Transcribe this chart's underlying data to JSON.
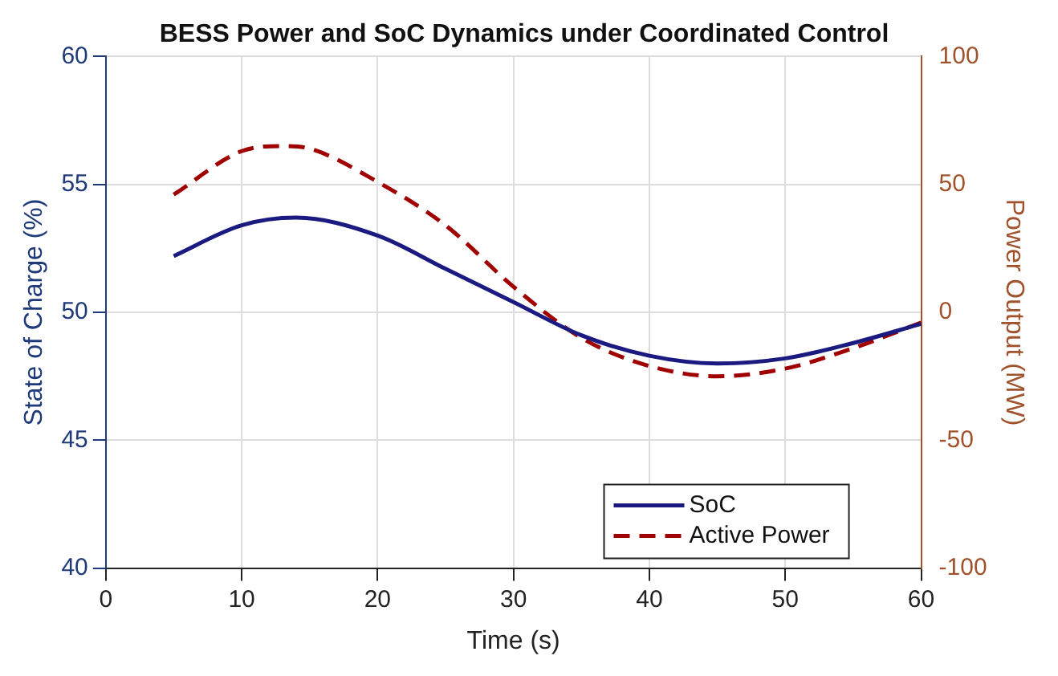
{
  "chart_data": {
    "type": "line",
    "title": "BESS Power and SoC Dynamics under Coordinated Control",
    "xlabel": "Time (s)",
    "ylabel": "State of Charge (%)",
    "y2label": "Power Output (MW)",
    "xlim": [
      0,
      60
    ],
    "xticks": [
      0,
      10,
      20,
      30,
      40,
      50,
      60
    ],
    "ylim": [
      40,
      60
    ],
    "yticks": [
      40,
      45,
      50,
      55,
      60
    ],
    "y2lim": [
      -100,
      100
    ],
    "y2ticks": [
      -100,
      -50,
      0,
      50,
      100
    ],
    "grid": true,
    "legend": "bottom right",
    "series": [
      {
        "name": "SoC",
        "color": "#1a1a80",
        "line_style": "solid",
        "x": [
          5,
          10,
          14,
          20,
          25,
          30,
          35,
          40,
          45,
          50,
          55,
          60
        ],
        "values": [
          52.2,
          53.4,
          53.7,
          53.0,
          51.7,
          50.4,
          49.1,
          48.3,
          48.0,
          48.2,
          48.8,
          49.55
        ]
      },
      {
        "name": "Active Power",
        "color": "#a00000",
        "line_style": "dashed",
        "axis": "y2",
        "x": [
          5,
          10,
          13,
          15,
          20,
          25,
          30,
          35,
          40,
          45,
          50,
          55,
          60
        ],
        "values": [
          46,
          63,
          65,
          64,
          51,
          34,
          10,
          -10,
          -21,
          -25,
          -22,
          -14,
          -4
        ]
      }
    ]
  }
}
